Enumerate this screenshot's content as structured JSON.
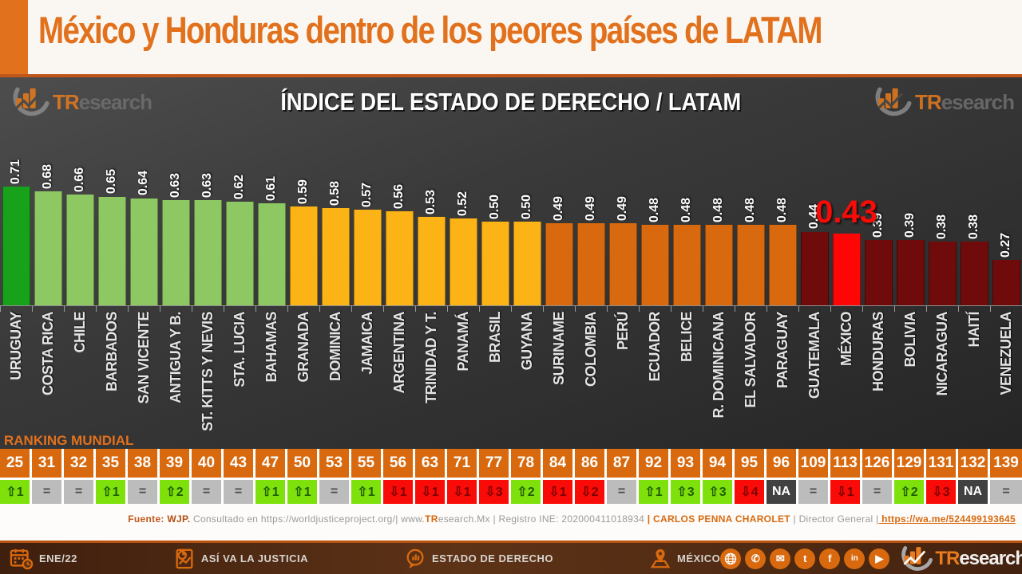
{
  "header": {
    "title": "México y Honduras dentro de los peores países de LATAM"
  },
  "brand": {
    "tr": "TR",
    "esearch": "esearch"
  },
  "chart": {
    "title": "ÍNDICE DEL ESTADO DE DERECHO / LATAM",
    "ranking_label": "RANKING MUNDIAL"
  },
  "chart_data": {
    "type": "bar",
    "title": "ÍNDICE DEL ESTADO DE DERECHO / LATAM",
    "ylim": [
      0,
      0.8
    ],
    "legend": null,
    "grid": false,
    "categories": [
      "URUGUAY",
      "COSTA RICA",
      "CHILE",
      "BARBADOS",
      "SAN VICENTE",
      "ANTIGUA Y B.",
      "ST. KITTS Y NEVIS",
      "STA. LUCIA",
      "BAHAMAS",
      "GRANADA",
      "DOMINICA",
      "JAMAICA",
      "ARGENTINA",
      "TRINIDAD Y T.",
      "PANAMÁ",
      "BRASIL",
      "GUYANA",
      "SURINAME",
      "COLOMBIA",
      "PERÚ",
      "ECUADOR",
      "BELICE",
      "R. DOMINICANA",
      "EL SALVADOR",
      "PARAGUAY",
      "GUATEMALA",
      "MÉXICO",
      "HONDURAS",
      "BOLIVIA",
      "NICARAGUA",
      "HAITÍ",
      "VENEZUELA"
    ],
    "values": [
      0.71,
      0.68,
      0.66,
      0.65,
      0.64,
      0.63,
      0.63,
      0.62,
      0.61,
      0.59,
      0.58,
      0.57,
      0.56,
      0.53,
      0.52,
      0.5,
      0.5,
      0.49,
      0.49,
      0.49,
      0.48,
      0.48,
      0.48,
      0.48,
      0.48,
      0.44,
      0.43,
      0.39,
      0.39,
      0.38,
      0.38,
      0.27
    ],
    "value_labels": [
      "0.71",
      "0.68",
      "0.66",
      "0.65",
      "0.64",
      "0.63",
      "0.63",
      "0.62",
      "0.61",
      "0.59",
      "0.58",
      "0.57",
      "0.56",
      "0.53",
      "0.52",
      "0.50",
      "0.50",
      "0.49",
      "0.49",
      "0.49",
      "0.48",
      "0.48",
      "0.48",
      "0.48",
      "0.48",
      "0.44",
      "0.43",
      "0.39",
      "0.39",
      "0.38",
      "0.38",
      "0.27"
    ],
    "bar_colors": [
      "#18a11b",
      "#8dc863",
      "#8dc863",
      "#8dc863",
      "#8dc863",
      "#8dc863",
      "#8dc863",
      "#8dc863",
      "#8dc863",
      "#fcb316",
      "#fcb316",
      "#fcb316",
      "#fcb316",
      "#fcb316",
      "#fcb316",
      "#fcb316",
      "#fcb316",
      "#d8690e",
      "#d8690e",
      "#d8690e",
      "#d8690e",
      "#d8690e",
      "#d8690e",
      "#d8690e",
      "#d8690e",
      "#6f0b0b",
      "#fe0606",
      "#6f0b0b",
      "#6f0b0b",
      "#6f0b0b",
      "#6f0b0b",
      "#6f0b0b"
    ],
    "highlight_index": 26,
    "highlight_color": "#f90b07",
    "rankings": [
      25,
      31,
      32,
      35,
      38,
      39,
      40,
      43,
      47,
      50,
      53,
      55,
      56,
      63,
      71,
      77,
      78,
      84,
      86,
      87,
      92,
      93,
      94,
      95,
      96,
      109,
      113,
      126,
      129,
      131,
      132,
      139
    ],
    "changes": [
      {
        "label": "⇧1",
        "status": "up"
      },
      {
        "label": "=",
        "status": "eq"
      },
      {
        "label": "=",
        "status": "eq"
      },
      {
        "label": "⇧1",
        "status": "up"
      },
      {
        "label": "=",
        "status": "eq"
      },
      {
        "label": "⇧2",
        "status": "up"
      },
      {
        "label": "=",
        "status": "eq"
      },
      {
        "label": "=",
        "status": "eq"
      },
      {
        "label": "⇧1",
        "status": "up"
      },
      {
        "label": "⇧1",
        "status": "up"
      },
      {
        "label": "=",
        "status": "eq"
      },
      {
        "label": "⇧1",
        "status": "up"
      },
      {
        "label": "⇩1",
        "status": "down"
      },
      {
        "label": "⇩1",
        "status": "down"
      },
      {
        "label": "⇩1",
        "status": "down"
      },
      {
        "label": "⇩3",
        "status": "down"
      },
      {
        "label": "⇧2",
        "status": "up"
      },
      {
        "label": "⇩1",
        "status": "down"
      },
      {
        "label": "⇩2",
        "status": "down"
      },
      {
        "label": "=",
        "status": "eq"
      },
      {
        "label": "⇧1",
        "status": "up"
      },
      {
        "label": "⇧3",
        "status": "up"
      },
      {
        "label": "⇧3",
        "status": "up"
      },
      {
        "label": "⇩4",
        "status": "down"
      },
      {
        "label": "NA",
        "status": "na"
      },
      {
        "label": "=",
        "status": "eq"
      },
      {
        "label": "⇩1",
        "status": "down"
      },
      {
        "label": "=",
        "status": "eq"
      },
      {
        "label": "⇧2",
        "status": "up"
      },
      {
        "label": "⇩3",
        "status": "down"
      },
      {
        "label": "NA",
        "status": "na"
      },
      {
        "label": "=",
        "status": "eq"
      }
    ],
    "status_colors": {
      "up": {
        "bg": "#7ee10b",
        "fg": "#215e00"
      },
      "eq": {
        "bg": "#bcbcbc",
        "fg": "#4a4a4a"
      },
      "down": {
        "bg": "#f90b07",
        "fg": "#7c0000"
      },
      "na": {
        "bg": "#414141",
        "fg": "#ffffff"
      }
    }
  },
  "source": {
    "parts": [
      {
        "text": "Fuente: ",
        "style": "label"
      },
      {
        "text": "WJP. ",
        "style": "strong"
      },
      {
        "text": "Consultado en https://worldjusticeproject.org/|  www.",
        "style": "muted"
      },
      {
        "text": "TR",
        "style": "accent"
      },
      {
        "text": "esearch.Mx ",
        "style": "muted"
      },
      {
        "text": "| Registro INE: 202000411018934  ",
        "style": "muted"
      },
      {
        "text": "| CARLOS PENNA CHAROLET ",
        "style": "accent"
      },
      {
        "text": "| Director General |",
        "style": "muted"
      },
      {
        "text": " https://wa.me/524499193645",
        "style": "link"
      }
    ]
  },
  "footer": {
    "date": "ENE/22",
    "justicia": "ASÍ VA LA JUSTICIA",
    "estado": "ESTADO DE DERECHO",
    "pais": "MÉXICO",
    "social_icons": [
      "globe-icon",
      "phone-icon",
      "email-icon",
      "twitter-icon",
      "facebook-icon",
      "linkedin-icon",
      "youtube-icon"
    ]
  }
}
